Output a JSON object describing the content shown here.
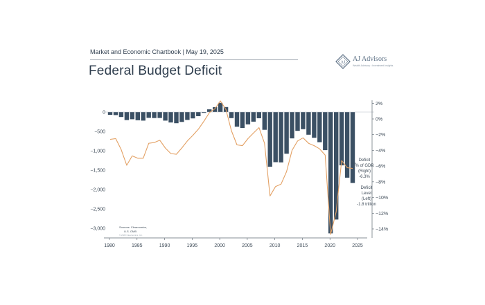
{
  "header": {
    "subtitle": "Market and Economic Chartbook | May 19, 2025",
    "title": "Federal Budget Deficit"
  },
  "logo": {
    "name": "AJ Advisors",
    "tagline": "Wealth Advisory • Investment Insights",
    "icon": "monogram-emblem-icon"
  },
  "chart_data": {
    "type": "bar",
    "x": [
      1980,
      1981,
      1982,
      1983,
      1984,
      1985,
      1986,
      1987,
      1988,
      1989,
      1990,
      1991,
      1992,
      1993,
      1994,
      1995,
      1996,
      1997,
      1998,
      1999,
      2000,
      2001,
      2002,
      2003,
      2004,
      2005,
      2006,
      2007,
      2008,
      2009,
      2010,
      2011,
      2012,
      2013,
      2014,
      2015,
      2016,
      2017,
      2018,
      2019,
      2020,
      2021,
      2022,
      2023,
      2024
    ],
    "series": [
      {
        "kind": "bar",
        "axis": "left",
        "color": "#3b5064",
        "values": [
          -74,
          -79,
          -128,
          -208,
          -185,
          -212,
          -221,
          -150,
          -155,
          -153,
          -221,
          -269,
          -290,
          -255,
          -203,
          -164,
          -107,
          -22,
          69,
          126,
          236,
          128,
          -158,
          -378,
          -413,
          -318,
          -248,
          -161,
          -459,
          -1413,
          -1294,
          -1300,
          -1077,
          -680,
          -485,
          -442,
          -585,
          -665,
          -779,
          -984,
          -3132,
          -2775,
          -1376,
          -1694,
          -1833
        ]
      },
      {
        "kind": "line",
        "axis": "right",
        "color": "#e3a063",
        "values": [
          -2.6,
          -2.5,
          -3.9,
          -5.9,
          -4.7,
          -5.0,
          -5.0,
          -3.1,
          -3.0,
          -2.7,
          -3.7,
          -4.4,
          -4.5,
          -3.7,
          -2.8,
          -2.1,
          -1.3,
          -0.3,
          0.8,
          1.3,
          2.3,
          1.2,
          -1.5,
          -3.3,
          -3.4,
          -2.5,
          -1.8,
          -1.1,
          -3.1,
          -9.8,
          -8.6,
          -8.3,
          -6.7,
          -4.0,
          -2.8,
          -2.4,
          -3.1,
          -3.4,
          -3.8,
          -4.6,
          -14.7,
          -11.8,
          -5.3,
          -6.2,
          -6.3
        ]
      }
    ],
    "left_axis": {
      "ylim": [
        -3300,
        150
      ],
      "ticks": [
        0,
        -500,
        -1000,
        -1500,
        -2000,
        -2500,
        -3000
      ],
      "tick_labels": [
        "0",
        "−1,000",
        "−1,500",
        "−2,000",
        "−2,500",
        "−3,000"
      ]
    },
    "right_axis": {
      "ylim": [
        -15.1,
        2.2
      ],
      "ticks": [
        2,
        0,
        -2,
        -4,
        -6,
        -8,
        -10,
        -12,
        -14
      ],
      "tick_labels": [
        "2%",
        "0%",
        "−2%",
        "−4%",
        "−6%",
        "−8%",
        "−10%",
        "−12%",
        "−14%"
      ]
    },
    "x_axis": {
      "ticks": [
        1980,
        1985,
        1990,
        1995,
        2000,
        2005,
        2010,
        2015,
        2020,
        2025
      ],
      "tick_labels": [
        "1980",
        "1985",
        "1990",
        "1995",
        "2000",
        "2005",
        "2010",
        "2015",
        "2020",
        "2025"
      ]
    },
    "zero_label": "0",
    "minus500_label": "−500",
    "annotations": {
      "gdp": [
        "Deficit",
        "% of GDP",
        "(Right)",
        "-6.3%"
      ],
      "level": [
        "Deficit",
        "Level",
        "(Left)",
        "-1.8 trillion"
      ]
    },
    "source": [
      "Sources: Clearnomics,",
      "U.S. OMB"
    ],
    "copyright": "© 2025 Clearnomics, Inc."
  }
}
